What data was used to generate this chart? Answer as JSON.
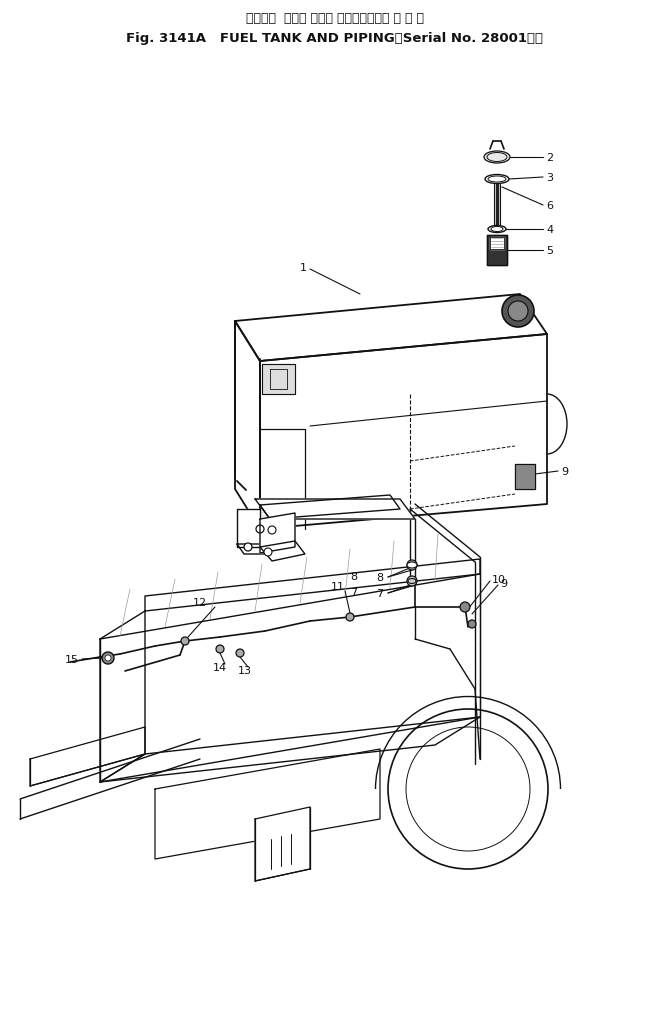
{
  "title_line1": "フュエル  タンク および パイピング（適 用 号 機",
  "title_line2": "Fig. 3141A   FUEL TANK AND PIPING（Serial No. 28001～）",
  "bg_color": "#ffffff",
  "lc": "#111111",
  "fig_width": 6.7,
  "fig_height": 10.12,
  "dpi": 100
}
